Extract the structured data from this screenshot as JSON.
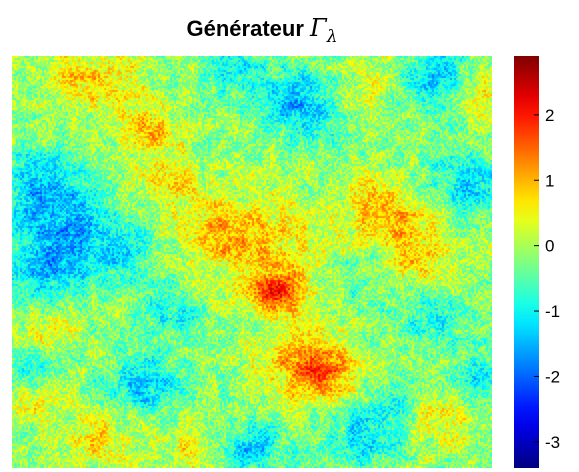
{
  "chart_data": {
    "type": "heatmap",
    "title": {
      "text": "Générateur",
      "symbol": "Γ",
      "subscript": "λ"
    },
    "xlabel": "",
    "ylabel": "",
    "colormap": "jet",
    "color_range": [
      -3.4,
      2.9
    ],
    "colorbar": {
      "ticks": [
        -3,
        -2,
        -1,
        0,
        1,
        2
      ],
      "placement": "right"
    },
    "grid": false,
    "blobs": [
      {
        "x": 0.55,
        "y": 0.57,
        "v": 1.6,
        "s": 0.035
      },
      {
        "x": 0.52,
        "y": 0.47,
        "v": 0.9,
        "s": 0.09
      },
      {
        "x": 0.64,
        "y": 0.77,
        "v": 1.3,
        "s": 0.05
      },
      {
        "x": 0.6,
        "y": 0.72,
        "v": 0.9,
        "s": 0.06
      },
      {
        "x": 0.17,
        "y": 0.05,
        "v": 1.0,
        "s": 0.06
      },
      {
        "x": 0.28,
        "y": 0.18,
        "v": 1.0,
        "s": 0.04
      },
      {
        "x": 0.33,
        "y": 0.3,
        "v": 0.7,
        "s": 0.05
      },
      {
        "x": 0.42,
        "y": 0.42,
        "v": 0.8,
        "s": 0.05
      },
      {
        "x": 0.08,
        "y": 0.67,
        "v": 0.8,
        "s": 0.04
      },
      {
        "x": 0.05,
        "y": 0.83,
        "v": 0.7,
        "s": 0.04
      },
      {
        "x": 0.18,
        "y": 0.92,
        "v": 0.8,
        "s": 0.05
      },
      {
        "x": 0.38,
        "y": 0.95,
        "v": 0.7,
        "s": 0.04
      },
      {
        "x": 0.77,
        "y": 0.37,
        "v": 1.1,
        "s": 0.05
      },
      {
        "x": 0.85,
        "y": 0.47,
        "v": 0.9,
        "s": 0.06
      },
      {
        "x": 0.73,
        "y": 0.07,
        "v": 0.7,
        "s": 0.05
      },
      {
        "x": 0.97,
        "y": 0.09,
        "v": 0.8,
        "s": 0.04
      },
      {
        "x": 0.9,
        "y": 0.88,
        "v": 0.8,
        "s": 0.05
      },
      {
        "x": 0.1,
        "y": 0.42,
        "v": -1.4,
        "s": 0.07
      },
      {
        "x": 0.06,
        "y": 0.3,
        "v": -1.2,
        "s": 0.05
      },
      {
        "x": 0.07,
        "y": 0.53,
        "v": -0.9,
        "s": 0.05
      },
      {
        "x": 0.22,
        "y": 0.48,
        "v": -0.8,
        "s": 0.05
      },
      {
        "x": 0.6,
        "y": 0.11,
        "v": -1.3,
        "s": 0.06
      },
      {
        "x": 0.46,
        "y": 0.04,
        "v": -0.9,
        "s": 0.04
      },
      {
        "x": 0.88,
        "y": 0.05,
        "v": -1.2,
        "s": 0.05
      },
      {
        "x": 0.95,
        "y": 0.3,
        "v": -1.1,
        "s": 0.05
      },
      {
        "x": 0.88,
        "y": 0.63,
        "v": -0.9,
        "s": 0.05
      },
      {
        "x": 0.05,
        "y": 0.75,
        "v": -0.8,
        "s": 0.04
      },
      {
        "x": 0.27,
        "y": 0.8,
        "v": -1.2,
        "s": 0.05
      },
      {
        "x": 0.34,
        "y": 0.62,
        "v": -0.7,
        "s": 0.05
      },
      {
        "x": 0.5,
        "y": 0.95,
        "v": -1.3,
        "s": 0.04
      },
      {
        "x": 0.73,
        "y": 0.93,
        "v": -1.1,
        "s": 0.05
      },
      {
        "x": 0.8,
        "y": 0.85,
        "v": -0.6,
        "s": 0.04
      },
      {
        "x": 0.97,
        "y": 0.78,
        "v": -1.0,
        "s": 0.04
      },
      {
        "x": 0.7,
        "y": 0.55,
        "v": -0.4,
        "s": 0.05
      }
    ],
    "noise_amplitude": 0.55,
    "base_level": -0.15
  }
}
